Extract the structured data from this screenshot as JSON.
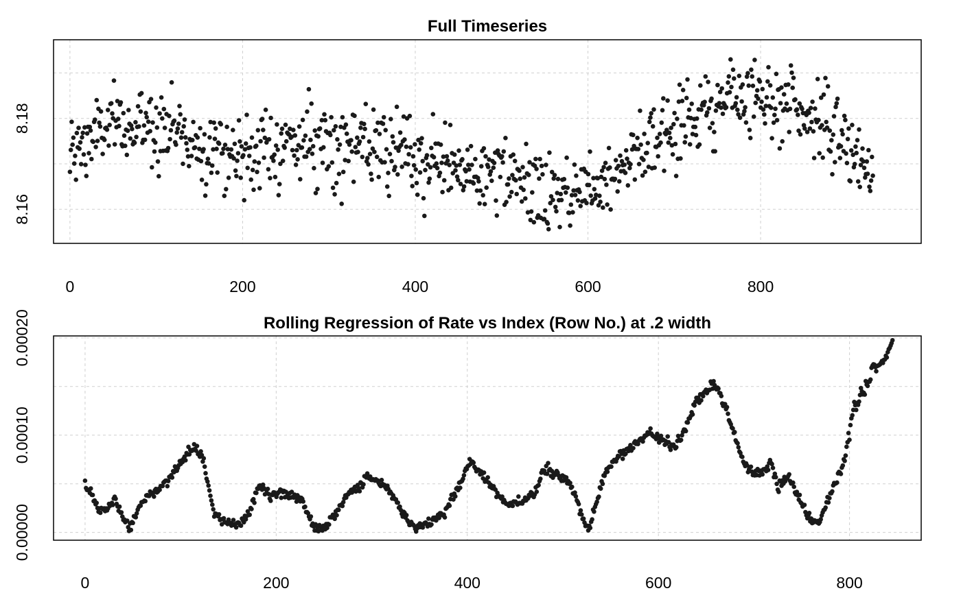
{
  "chart_data": [
    {
      "type": "scatter",
      "title": "Full Timeseries",
      "xlabel": "",
      "ylabel": "",
      "xlim": [
        -19,
        986
      ],
      "ylim": [
        8.1525,
        8.1973
      ],
      "x_ticks": [
        0,
        200,
        400,
        600,
        800
      ],
      "x_tick_labels": [
        "0",
        "200",
        "400",
        "600",
        "800"
      ],
      "y_ticks": [
        8.16,
        8.17,
        8.18,
        8.19
      ],
      "y_tick_labels": [
        "8.16",
        "",
        "8.18",
        ""
      ],
      "grid": true,
      "point_color": "#1a1a1a",
      "n_points": 932,
      "anchors": [
        [
          0,
          8.171
        ],
        [
          20,
          8.175
        ],
        [
          40,
          8.178
        ],
        [
          60,
          8.178
        ],
        [
          80,
          8.178
        ],
        [
          100,
          8.179
        ],
        [
          120,
          8.178
        ],
        [
          140,
          8.175
        ],
        [
          160,
          8.174
        ],
        [
          180,
          8.173
        ],
        [
          200,
          8.172
        ],
        [
          240,
          8.174
        ],
        [
          280,
          8.175
        ],
        [
          300,
          8.175
        ],
        [
          350,
          8.173
        ],
        [
          400,
          8.171
        ],
        [
          450,
          8.169
        ],
        [
          500,
          8.167
        ],
        [
          530,
          8.165
        ],
        [
          560,
          8.163
        ],
        [
          590,
          8.164
        ],
        [
          610,
          8.166
        ],
        [
          650,
          8.172
        ],
        [
          700,
          8.178
        ],
        [
          750,
          8.183
        ],
        [
          800,
          8.186
        ],
        [
          840,
          8.183
        ],
        [
          870,
          8.179
        ],
        [
          900,
          8.174
        ],
        [
          930,
          8.166
        ]
      ],
      "noise_sd": 0.0042
    },
    {
      "type": "scatter",
      "title": "Rolling Regression of Rate vs Index (Row No.) at .2 width",
      "xlabel": "",
      "ylabel": "",
      "xlim": [
        -33,
        875
      ],
      "ylim": [
        -8e-06,
        0.000202
      ],
      "x_ticks": [
        0,
        200,
        400,
        600,
        800
      ],
      "x_tick_labels": [
        "0",
        "200",
        "400",
        "600",
        "800"
      ],
      "y_ticks": [
        0,
        5e-05,
        0.0001,
        0.00015,
        0.0002
      ],
      "y_tick_labels": [
        "0.00000",
        "",
        "0.00010",
        "",
        "0.00020"
      ],
      "grid": true,
      "point_color": "#1a1a1a",
      "n_points": 845,
      "anchors": [
        [
          0,
          5e-05
        ],
        [
          8,
          3.5e-05
        ],
        [
          15,
          2.2e-05
        ],
        [
          25,
          2.8e-05
        ],
        [
          32,
          3.5e-05
        ],
        [
          38,
          1.8e-05
        ],
        [
          48,
          5e-06
        ],
        [
          56,
          2.5e-05
        ],
        [
          65,
          3.8e-05
        ],
        [
          75,
          4.2e-05
        ],
        [
          90,
          5.8e-05
        ],
        [
          105,
          7.8e-05
        ],
        [
          115,
          8.8e-05
        ],
        [
          123,
          7.8e-05
        ],
        [
          135,
          2e-05
        ],
        [
          145,
          1e-05
        ],
        [
          160,
          8e-06
        ],
        [
          172,
          2e-05
        ],
        [
          182,
          4.8e-05
        ],
        [
          195,
          3.8e-05
        ],
        [
          205,
          4.2e-05
        ],
        [
          215,
          3.8e-05
        ],
        [
          225,
          3.5e-05
        ],
        [
          232,
          2.2e-05
        ],
        [
          240,
          5e-06
        ],
        [
          252,
          5e-06
        ],
        [
          262,
          2e-05
        ],
        [
          275,
          4e-05
        ],
        [
          285,
          4.2e-05
        ],
        [
          295,
          6e-05
        ],
        [
          310,
          5e-05
        ],
        [
          322,
          4e-05
        ],
        [
          332,
          2e-05
        ],
        [
          345,
          5e-06
        ],
        [
          358,
          1e-05
        ],
        [
          375,
          1.8e-05
        ],
        [
          385,
          3.5e-05
        ],
        [
          395,
          5.5e-05
        ],
        [
          403,
          7.5e-05
        ],
        [
          412,
          6.2e-05
        ],
        [
          420,
          5.5e-05
        ],
        [
          430,
          4.2e-05
        ],
        [
          440,
          2.8e-05
        ],
        [
          455,
          3.2e-05
        ],
        [
          470,
          3.8e-05
        ],
        [
          480,
          6.5e-05
        ],
        [
          495,
          5.8e-05
        ],
        [
          505,
          5.5e-05
        ],
        [
          512,
          4e-05
        ],
        [
          520,
          1.5e-05
        ],
        [
          527,
          2e-06
        ],
        [
          535,
          3e-05
        ],
        [
          545,
          6.5e-05
        ],
        [
          560,
          8e-05
        ],
        [
          575,
          9e-05
        ],
        [
          590,
          0.000102
        ],
        [
          605,
          9.5e-05
        ],
        [
          615,
          8.8e-05
        ],
        [
          625,
          0.0001
        ],
        [
          640,
          0.000135
        ],
        [
          650,
          0.000145
        ],
        [
          660,
          0.000152
        ],
        [
          670,
          0.00013
        ],
        [
          680,
          9.8e-05
        ],
        [
          690,
          7e-05
        ],
        [
          700,
          6e-05
        ],
        [
          710,
          6.2e-05
        ],
        [
          718,
          7.2e-05
        ],
        [
          725,
          4.5e-05
        ],
        [
          735,
          5.8e-05
        ],
        [
          745,
          4e-05
        ],
        [
          755,
          2e-05
        ],
        [
          762,
          1e-05
        ],
        [
          770,
          1.5e-05
        ],
        [
          778,
          3.5e-05
        ],
        [
          785,
          5e-05
        ],
        [
          795,
          7.5e-05
        ],
        [
          805,
          0.00013
        ],
        [
          815,
          0.000145
        ],
        [
          825,
          0.00017
        ],
        [
          835,
          0.000175
        ],
        [
          845,
          0.000195
        ]
      ],
      "noise_sd": 2.5e-06
    }
  ]
}
